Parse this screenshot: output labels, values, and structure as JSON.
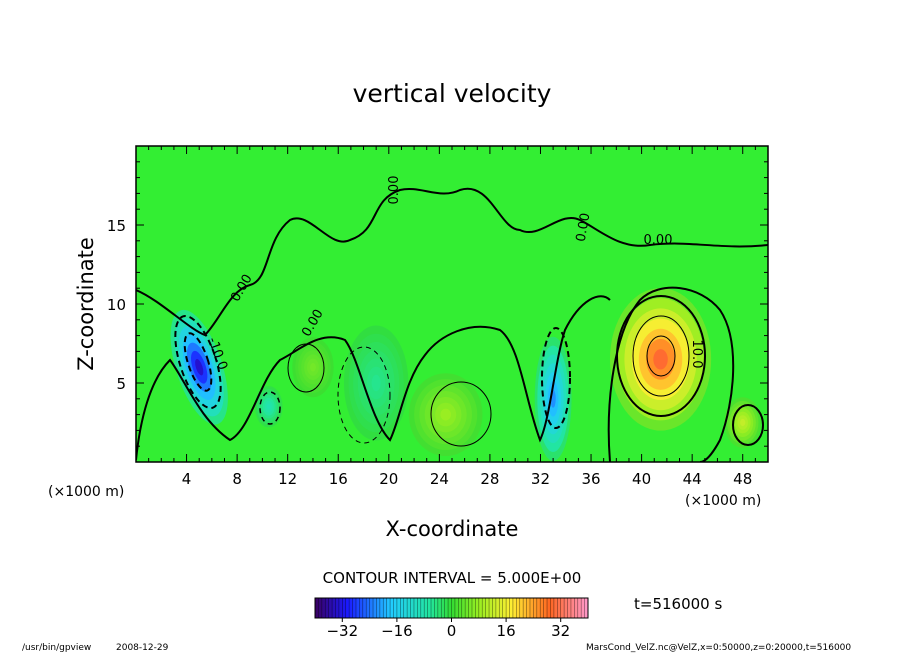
{
  "chart_data": {
    "type": "contour",
    "title": "vertical velocity",
    "xlabel": "X-coordinate",
    "ylabel": "Z-coordinate",
    "x_units": "(×1000 m)",
    "y_units": "(×1000 m)",
    "xlim": [
      0,
      50
    ],
    "ylim": [
      0,
      20
    ],
    "x_ticks": [
      4,
      8,
      12,
      16,
      20,
      24,
      28,
      32,
      36,
      40,
      44,
      48
    ],
    "y_ticks": [
      5,
      10,
      15
    ],
    "contour_interval_text": "CONTOUR INTERVAL = 5.000E+00",
    "contour_labels": [
      "0.00",
      "0.00",
      "0.00",
      "0.00",
      "0.00",
      "10.0",
      "-10.0"
    ],
    "time_label": "t=516000 s",
    "colorbar": {
      "range": [
        -40,
        40
      ],
      "ticks": [
        -32,
        -16,
        0,
        16,
        32
      ],
      "tick_labels": [
        "−32",
        "−16",
        "0",
        "16",
        "32"
      ]
    },
    "features": [
      {
        "kind": "updraft",
        "x": 41.5,
        "z": 6.5,
        "max": 30
      },
      {
        "kind": "updraft",
        "x": 48.0,
        "z": 2.5,
        "max": 12
      },
      {
        "kind": "updraft",
        "x": 24.5,
        "z": 3.0,
        "max": 8
      },
      {
        "kind": "updraft",
        "x": 14.0,
        "z": 6.0,
        "max": 5
      },
      {
        "kind": "downdraft",
        "x": 5.0,
        "z": 6.0,
        "min": -33
      },
      {
        "kind": "downdraft",
        "x": 33.0,
        "z": 4.0,
        "min": -22
      },
      {
        "kind": "downdraft",
        "x": 10.5,
        "z": 3.5,
        "min": -8
      },
      {
        "kind": "downdraft",
        "x": 19.0,
        "z": 5.0,
        "min": -5
      }
    ]
  },
  "footer": {
    "program": "/usr/bin/gpview",
    "date": "2008-12-29",
    "source": "MarsCond_VelZ.nc@VelZ,x=0:50000,z=0:20000,t=516000"
  }
}
